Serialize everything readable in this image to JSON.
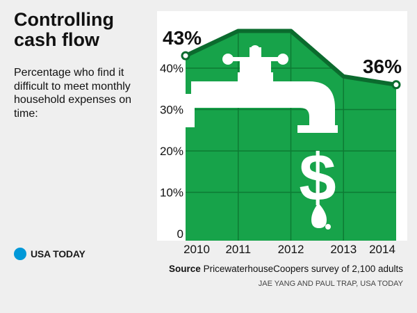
{
  "header": {
    "title": "Controlling\ncash flow",
    "subtitle": "Percentage who find it difficult to meet monthly household expenses on time:"
  },
  "brand": {
    "name": "USA TODAY",
    "dot_color": "#0098d8"
  },
  "footer": {
    "source_label": "Source",
    "source_text": "PricewaterhouseCoopers survey of 2,100 adults",
    "credit": "JAE YANG AND PAUL TRAP, USA TODAY"
  },
  "chart_data": {
    "type": "area",
    "title": "Controlling cash flow",
    "subtitle": "Percentage who find it difficult to meet monthly household expenses on time:",
    "x": [
      "2010",
      "2011",
      "2012",
      "2013",
      "2014"
    ],
    "series": [
      {
        "values": [
          43,
          49,
          49,
          38,
          36
        ]
      }
    ],
    "data_labels": [
      {
        "x": "2010",
        "text": "43%"
      },
      {
        "x": "2014",
        "text": "36%"
      }
    ],
    "y_ticks": [
      {
        "value": 0,
        "label": "0"
      },
      {
        "value": 10,
        "label": "10%"
      },
      {
        "value": 20,
        "label": "20%"
      },
      {
        "value": 30,
        "label": "30%"
      },
      {
        "value": 40,
        "label": "40%"
      }
    ],
    "ylim": [
      0,
      50
    ],
    "grid": true,
    "colors": {
      "fill": "#17a34a",
      "line": "#0b6b2e",
      "grid": "#0d7a33",
      "faucet": "#ffffff",
      "panel": "#ffffff"
    },
    "illustration": "faucet dripping dollar sign"
  }
}
